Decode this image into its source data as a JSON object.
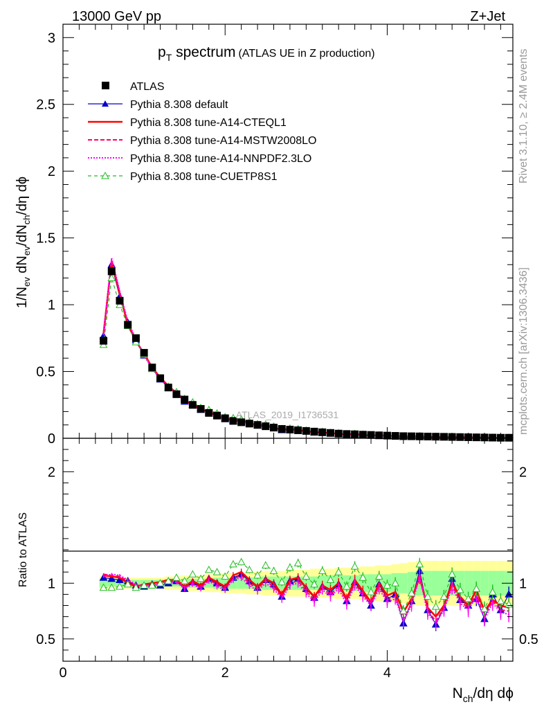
{
  "header": {
    "left": "13000 GeV pp",
    "right": "Z+Jet"
  },
  "title": {
    "main": "p",
    "sub": "T",
    "rest": " spectrum",
    "small": "(ATLAS UE in Z production)"
  },
  "side_labels": {
    "rivet": "Rivet 3.1.10, ≥ 2.4M events",
    "mcplots": "mcplots.cern.ch [arXiv:1306.3436]"
  },
  "watermark": "ATLAS_2019_I1736531",
  "y_label_top": {
    "a": "1/N",
    "a_sub": "ev",
    "b": " dN",
    "b_sub": "ev",
    "c": "/dN",
    "c_sub": "ch",
    "d": "/dη dϕ"
  },
  "y_label_bottom": "Ratio to ATLAS",
  "x_label": {
    "a": "N",
    "a_sub": "ch",
    "b": "/dη dϕ"
  },
  "legend": [
    {
      "label": "ATLAS",
      "color": "#000000",
      "style": "square"
    },
    {
      "label": "Pythia 8.308 default",
      "color": "#0000cc",
      "style": "line-tri"
    },
    {
      "label": "Pythia 8.308 tune-A14-CTEQL1",
      "color": "#ff0000",
      "style": "thick"
    },
    {
      "label": "Pythia 8.308 tune-A14-MSTW2008LO",
      "color": "#ff0066",
      "style": "dash"
    },
    {
      "label": "Pythia 8.308 tune-A14-NNPDF2.3LO",
      "color": "#ff00ff",
      "style": "dot"
    },
    {
      "label": "Pythia 8.308 tune-CUETP8S1",
      "color": "#22bb22",
      "style": "dash-tri"
    }
  ],
  "chart_data": {
    "type": "line",
    "top_ylim": [
      0,
      3.1
    ],
    "ratio_ylim": [
      0.3,
      2.3
    ],
    "xlim": [
      0,
      5.55
    ],
    "top_yticks": [
      0,
      0.5,
      1,
      1.5,
      2,
      2.5,
      3
    ],
    "top_yticklabels": [
      "0",
      "0.5",
      "1",
      "1.5",
      "2",
      "2.5",
      "3"
    ],
    "ratio_yticks": [
      0.5,
      1,
      2
    ],
    "ratio_yticklabels": [
      "0.5",
      "1",
      "2"
    ],
    "xticks": [
      0,
      2,
      4
    ],
    "xticklabels": [
      "0",
      "2",
      "4"
    ],
    "x": [
      0.5,
      0.6,
      0.7,
      0.8,
      0.9,
      1.0,
      1.1,
      1.2,
      1.3,
      1.4,
      1.5,
      1.6,
      1.7,
      1.8,
      1.9,
      2.0,
      2.1,
      2.2,
      2.3,
      2.4,
      2.5,
      2.6,
      2.7,
      2.8,
      2.9,
      3.0,
      3.1,
      3.2,
      3.3,
      3.4,
      3.5,
      3.6,
      3.7,
      3.8,
      3.9,
      4.0,
      4.1,
      4.2,
      4.3,
      4.4,
      4.5,
      4.6,
      4.7,
      4.8,
      4.9,
      5.0,
      5.1,
      5.2,
      5.3,
      5.4,
      5.5
    ],
    "atlas": [
      0.73,
      1.25,
      1.03,
      0.85,
      0.75,
      0.64,
      0.53,
      0.45,
      0.38,
      0.33,
      0.29,
      0.25,
      0.22,
      0.19,
      0.17,
      0.15,
      0.13,
      0.12,
      0.11,
      0.1,
      0.09,
      0.08,
      0.07,
      0.065,
      0.06,
      0.055,
      0.05,
      0.045,
      0.04,
      0.035,
      0.032,
      0.03,
      0.027,
      0.025,
      0.022,
      0.02,
      0.018,
      0.016,
      0.015,
      0.014,
      0.013,
      0.012,
      0.011,
      0.01,
      0.009,
      0.008,
      0.007,
      0.006,
      0.005,
      0.004,
      0.004
    ],
    "ratio_series": [
      {
        "name": "Pythia 8.308 default",
        "values": [
          1.05,
          1.04,
          1.03,
          1.02,
          0.98,
          0.97,
          0.99,
          0.98,
          1.0,
          1.02,
          0.95,
          1.01,
          0.97,
          1.04,
          1.0,
          0.96,
          1.05,
          1.08,
          1.02,
          0.96,
          1.03,
          0.99,
          0.88,
          1.02,
          1.04,
          0.95,
          0.87,
          0.97,
          0.92,
          0.99,
          0.84,
          1.01,
          0.91,
          0.8,
          0.99,
          0.86,
          0.9,
          0.64,
          0.84,
          1.11,
          0.76,
          0.63,
          0.78,
          1.04,
          0.85,
          0.8,
          0.86,
          0.68,
          0.9,
          0.76,
          0.9
        ]
      },
      {
        "name": "Pythia 8.308 tune-A14-CTEQL1",
        "values": [
          1.07,
          1.06,
          1.05,
          1.0,
          0.97,
          0.99,
          1.0,
          1.01,
          1.03,
          1.03,
          0.97,
          1.02,
          0.98,
          1.05,
          1.01,
          0.97,
          1.07,
          1.1,
          1.03,
          0.97,
          1.04,
          1.0,
          0.9,
          1.03,
          1.05,
          0.96,
          0.88,
          0.98,
          0.94,
          1.0,
          0.86,
          1.03,
          0.93,
          0.83,
          1.0,
          0.89,
          0.92,
          0.74,
          0.86,
          1.05,
          0.78,
          0.7,
          0.8,
          1.0,
          0.88,
          0.8,
          0.94,
          0.75,
          0.85,
          0.8,
          0.78
        ]
      },
      {
        "name": "Pythia 8.308 tune-A14-MSTW2008LO",
        "values": [
          1.08,
          1.07,
          1.06,
          1.02,
          0.98,
          0.98,
          0.99,
          1.0,
          1.02,
          1.02,
          0.96,
          1.0,
          0.96,
          1.03,
          0.99,
          0.95,
          1.04,
          1.07,
          1.0,
          0.95,
          1.02,
          0.97,
          0.88,
          1.0,
          1.02,
          0.93,
          0.85,
          0.96,
          0.9,
          0.97,
          0.84,
          1.0,
          0.9,
          0.82,
          0.97,
          0.85,
          0.88,
          0.68,
          0.82,
          1.08,
          0.75,
          0.66,
          0.78,
          0.98,
          0.84,
          0.78,
          0.9,
          0.7,
          0.84,
          0.76,
          0.75
        ]
      },
      {
        "name": "Pythia 8.308 tune-A14-NNPDF2.3LO",
        "values": [
          1.06,
          1.08,
          1.07,
          1.03,
          0.99,
          0.97,
          0.98,
          0.99,
          1.01,
          1.01,
          0.95,
          0.99,
          0.95,
          1.02,
          0.97,
          0.94,
          1.03,
          1.05,
          0.98,
          0.93,
          1.0,
          0.95,
          0.86,
          0.98,
          1.0,
          0.91,
          0.83,
          0.94,
          0.88,
          0.95,
          0.81,
          0.98,
          0.88,
          0.8,
          0.95,
          0.83,
          0.86,
          0.66,
          0.8,
          1.06,
          0.73,
          0.64,
          0.76,
          0.96,
          0.82,
          0.76,
          0.88,
          0.68,
          0.82,
          0.74,
          0.72
        ]
      },
      {
        "name": "Pythia 8.308 tune-CUETP8S1",
        "values": [
          0.96,
          0.96,
          0.97,
          0.99,
          0.96,
          0.98,
          0.98,
          1.0,
          1.02,
          1.05,
          1.02,
          1.08,
          1.04,
          1.12,
          1.1,
          1.06,
          1.17,
          1.19,
          1.12,
          1.07,
          1.16,
          1.11,
          1.01,
          1.14,
          1.18,
          1.06,
          0.99,
          1.11,
          1.03,
          1.1,
          0.97,
          1.15,
          1.05,
          0.92,
          1.06,
          0.98,
          1.0,
          0.75,
          0.91,
          1.17,
          0.88,
          0.79,
          0.88,
          1.08,
          0.94,
          0.86,
          0.95,
          0.77,
          0.92,
          0.84,
          0.81
        ]
      }
    ],
    "band_inner": [
      0.04,
      0.03,
      0.03,
      0.03,
      0.03,
      0.03,
      0.03,
      0.03,
      0.03,
      0.03,
      0.04,
      0.04,
      0.04,
      0.04,
      0.05,
      0.05,
      0.05,
      0.05,
      0.05,
      0.05,
      0.06,
      0.06,
      0.06,
      0.06,
      0.06,
      0.06,
      0.06,
      0.07,
      0.07,
      0.07,
      0.07,
      0.07,
      0.08,
      0.08,
      0.08,
      0.08,
      0.09,
      0.09,
      0.1,
      0.11,
      0.11,
      0.11,
      0.11,
      0.11,
      0.11,
      0.11,
      0.11,
      0.11,
      0.11,
      0.11,
      0.11
    ],
    "band_outer": [
      0.06,
      0.05,
      0.05,
      0.05,
      0.05,
      0.05,
      0.05,
      0.05,
      0.06,
      0.06,
      0.07,
      0.07,
      0.07,
      0.08,
      0.08,
      0.09,
      0.09,
      0.09,
      0.1,
      0.1,
      0.11,
      0.11,
      0.11,
      0.12,
      0.12,
      0.12,
      0.13,
      0.13,
      0.13,
      0.14,
      0.14,
      0.14,
      0.15,
      0.15,
      0.16,
      0.16,
      0.17,
      0.18,
      0.19,
      0.2,
      0.2,
      0.2,
      0.2,
      0.2,
      0.2,
      0.2,
      0.2,
      0.2,
      0.2,
      0.2,
      0.2
    ]
  }
}
